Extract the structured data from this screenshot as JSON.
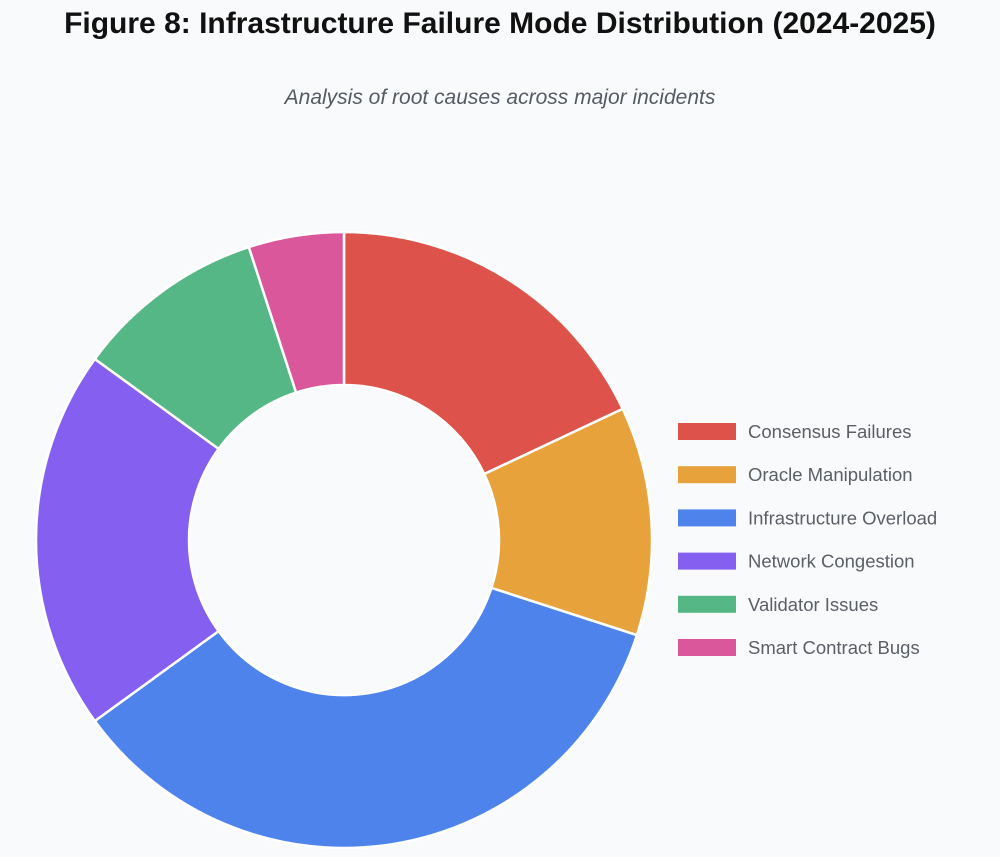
{
  "chart_data": {
    "type": "pie",
    "donut": true,
    "title": "Figure 8: Infrastructure Failure Mode Distribution (2024-2025)",
    "subtitle": "Analysis of root causes across major incidents",
    "legend_position": "right",
    "categories": [
      "Consensus Failures",
      "Oracle Manipulation",
      "Infrastructure Overload",
      "Network Congestion",
      "Validator Issues",
      "Smart Contract Bugs"
    ],
    "values": [
      18,
      12,
      35,
      20,
      10,
      5
    ],
    "colors": [
      "#dd524b",
      "#e7a23c",
      "#4e83ec",
      "#855ff0",
      "#55b785",
      "#d9579a"
    ]
  }
}
